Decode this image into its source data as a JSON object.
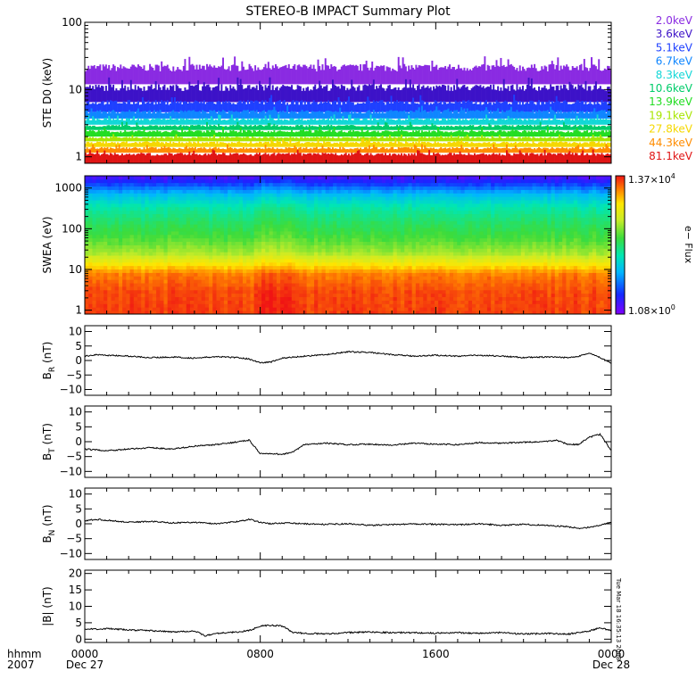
{
  "title": "STEREO-B IMPACT Summary Plot",
  "timestamp_vertical": "Tue Mar 18 16:35:13 2008",
  "time_axis": {
    "row_label": "hhmm",
    "year": "2007",
    "ticks": [
      {
        "t": 0,
        "label": "0000",
        "date": "Dec 27"
      },
      {
        "t": 8,
        "label": "0800",
        "date": ""
      },
      {
        "t": 16,
        "label": "1600",
        "date": ""
      },
      {
        "t": 24,
        "label": "0000",
        "date": "Dec 28"
      }
    ]
  },
  "colorbar": {
    "label": "e− Flux",
    "max_label": "1.37×10",
    "max_exp": "4",
    "min_label": "1.08×10",
    "min_exp": "0"
  },
  "chart_data": [
    {
      "id": "ste",
      "type": "line",
      "ylabel": "STE D0 (keV)",
      "yscale": "log",
      "ylim": [
        0.8,
        100
      ],
      "yticks": [
        {
          "v": 1,
          "label": "1"
        },
        {
          "v": 10,
          "label": "10"
        },
        {
          "v": 100,
          "label": "100"
        }
      ],
      "channels": [
        {
          "name": "2.0keV",
          "color": "#8a2be2",
          "base": 12,
          "top": 24
        },
        {
          "name": "3.6keV",
          "color": "#3d12c8",
          "base": 6.5,
          "top": 12
        },
        {
          "name": "5.1keV",
          "color": "#1e40ff",
          "base": 4.6,
          "top": 7
        },
        {
          "name": "6.7keV",
          "color": "#0f86ff",
          "base": 3.7,
          "top": 5
        },
        {
          "name": "8.3keV",
          "color": "#12d7d7",
          "base": 3.0,
          "top": 3.8
        },
        {
          "name": "10.6keV",
          "color": "#00cc6a",
          "base": 2.5,
          "top": 3.0
        },
        {
          "name": "13.9keV",
          "color": "#22dd22",
          "base": 2.0,
          "top": 2.5
        },
        {
          "name": "19.1keV",
          "color": "#a8e600",
          "base": 1.7,
          "top": 2.0
        },
        {
          "name": "27.8keV",
          "color": "#f5d800",
          "base": 1.4,
          "top": 1.7
        },
        {
          "name": "44.3keV",
          "color": "#ff8c00",
          "base": 1.15,
          "top": 1.4
        },
        {
          "name": "81.1keV",
          "color": "#e01414",
          "base": 0.9,
          "top": 1.15
        }
      ]
    },
    {
      "id": "swea",
      "type": "heatmap",
      "ylabel": "SWEA (eV)",
      "yscale": "log",
      "ylim": [
        0.8,
        2000
      ],
      "yticks": [
        {
          "v": 1,
          "label": "1"
        },
        {
          "v": 10,
          "label": "10"
        },
        {
          "v": 100,
          "label": "100"
        },
        {
          "v": 1000,
          "label": "1000"
        }
      ],
      "energy_profile": [
        {
          "e": 1,
          "c": 0.96
        },
        {
          "e": 3,
          "c": 0.95
        },
        {
          "e": 8,
          "c": 0.9
        },
        {
          "e": 14,
          "c": 0.78
        },
        {
          "e": 25,
          "c": 0.65
        },
        {
          "e": 60,
          "c": 0.56
        },
        {
          "e": 150,
          "c": 0.5
        },
        {
          "e": 350,
          "c": 0.43
        },
        {
          "e": 700,
          "c": 0.32
        },
        {
          "e": 1200,
          "c": 0.18
        },
        {
          "e": 2000,
          "c": 0.05
        }
      ]
    },
    {
      "id": "br",
      "type": "line",
      "ylabel": "B",
      "sub": "R",
      "unit": "(nT)",
      "ylim": [
        -12,
        12
      ],
      "yticks": [
        {
          "v": -10,
          "label": "−10"
        },
        {
          "v": -5,
          "label": "−5"
        },
        {
          "v": 0,
          "label": "0"
        },
        {
          "v": 5,
          "label": "5"
        },
        {
          "v": 10,
          "label": "10"
        }
      ],
      "x": [
        0,
        0.5,
        1,
        2,
        3,
        4,
        5,
        6,
        7,
        7.5,
        8,
        8.5,
        9,
        10,
        11,
        12,
        13,
        14,
        15,
        16,
        17,
        18,
        19,
        20,
        21,
        22,
        22.5,
        23,
        23.5,
        24
      ],
      "y": [
        1.5,
        2.0,
        1.8,
        1.5,
        1.0,
        1.2,
        0.8,
        1.3,
        1.0,
        0.5,
        -0.8,
        -0.5,
        0.8,
        1.5,
        2.0,
        3.0,
        2.8,
        2.0,
        1.5,
        1.8,
        1.5,
        1.8,
        1.5,
        1.0,
        1.2,
        1.0,
        1.5,
        2.5,
        1.0,
        -1.0
      ]
    },
    {
      "id": "bt",
      "type": "line",
      "ylabel": "B",
      "sub": "T",
      "unit": "(nT)",
      "ylim": [
        -12,
        12
      ],
      "yticks": [
        {
          "v": -10,
          "label": "−10"
        },
        {
          "v": -5,
          "label": "−5"
        },
        {
          "v": 0,
          "label": "0"
        },
        {
          "v": 5,
          "label": "5"
        },
        {
          "v": 10,
          "label": "10"
        }
      ],
      "x": [
        0,
        1,
        2,
        3,
        4,
        5,
        6,
        7,
        7.5,
        8,
        9,
        9.5,
        10,
        11,
        12,
        13,
        14,
        15,
        16,
        17,
        18,
        19,
        20,
        21,
        21.5,
        22,
        22.5,
        23,
        23.5,
        24
      ],
      "y": [
        -2.5,
        -3.0,
        -2.5,
        -2.0,
        -2.5,
        -1.5,
        -1.0,
        0.0,
        0.5,
        -4.0,
        -4.2,
        -3.5,
        -1.0,
        -0.5,
        -1.0,
        -0.8,
        -1.2,
        -0.5,
        -0.8,
        -1.0,
        -0.3,
        -0.5,
        -0.2,
        0.0,
        0.5,
        -0.8,
        -1.0,
        1.5,
        2.5,
        -3.0
      ]
    },
    {
      "id": "bn",
      "type": "line",
      "ylabel": "B",
      "sub": "N",
      "unit": "(nT)",
      "ylim": [
        -12,
        12
      ],
      "yticks": [
        {
          "v": -10,
          "label": "−10"
        },
        {
          "v": -5,
          "label": "−5"
        },
        {
          "v": 0,
          "label": "0"
        },
        {
          "v": 5,
          "label": "5"
        },
        {
          "v": 10,
          "label": "10"
        }
      ],
      "x": [
        0,
        0.5,
        1,
        2,
        3,
        4,
        5,
        6,
        7,
        7.5,
        8,
        8.5,
        9,
        10,
        11,
        12,
        13,
        14,
        15,
        16,
        17,
        18,
        19,
        20,
        21,
        22,
        22.5,
        23,
        23.5,
        24
      ],
      "y": [
        1.0,
        1.5,
        1.2,
        0.5,
        0.8,
        0.3,
        0.5,
        0.0,
        0.8,
        1.5,
        0.5,
        0.0,
        0.3,
        0.0,
        -0.2,
        0.0,
        -0.5,
        -0.3,
        0.0,
        -0.2,
        -0.3,
        0.0,
        -0.5,
        -0.2,
        -0.5,
        -1.0,
        -1.5,
        -1.2,
        -0.5,
        0.5
      ]
    },
    {
      "id": "bmag",
      "type": "line",
      "ylabel": "|B|",
      "sub": "",
      "unit": "(nT)",
      "ylim": [
        -1,
        21
      ],
      "yticks": [
        {
          "v": 0,
          "label": "0"
        },
        {
          "v": 5,
          "label": "5"
        },
        {
          "v": 10,
          "label": "10"
        },
        {
          "v": 15,
          "label": "15"
        },
        {
          "v": 20,
          "label": "20"
        }
      ],
      "x": [
        0,
        1,
        2,
        3,
        4,
        5,
        5.5,
        6,
        7,
        7.5,
        8,
        8.5,
        9,
        9.5,
        10,
        11,
        12,
        13,
        14,
        15,
        16,
        17,
        18,
        19,
        20,
        21,
        22,
        23,
        23.5,
        24
      ],
      "y": [
        3.0,
        3.2,
        2.8,
        2.6,
        2.2,
        2.5,
        1.0,
        1.8,
        2.2,
        2.6,
        4.0,
        4.2,
        4.0,
        2.0,
        1.8,
        1.6,
        2.0,
        2.2,
        2.0,
        2.0,
        1.8,
        2.0,
        1.8,
        2.0,
        1.5,
        1.8,
        1.5,
        2.5,
        3.5,
        2.5
      ]
    }
  ]
}
